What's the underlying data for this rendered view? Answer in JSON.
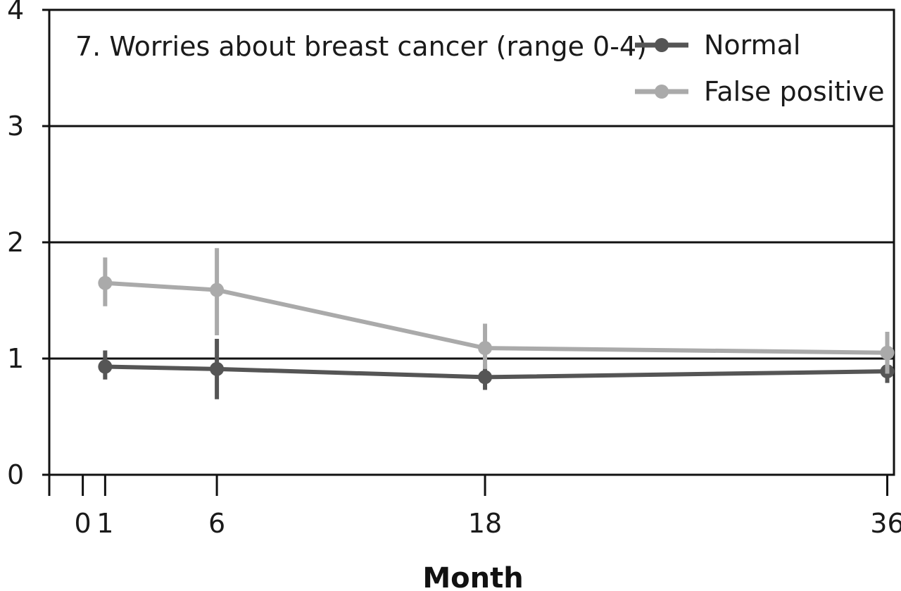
{
  "chart_data": {
    "type": "line",
    "title": "7. Worries about breast cancer (range 0-4)",
    "xlabel": "Month",
    "ylabel": "",
    "x_ticks": [
      0,
      1,
      6,
      18,
      36
    ],
    "y_ticks": [
      0,
      1,
      2,
      3,
      4
    ],
    "xlim": [
      -1.5,
      36.3
    ],
    "ylim": [
      0,
      4
    ],
    "grid": "horizontal",
    "legend": "top-right",
    "series": [
      {
        "name": "Normal",
        "color": "#555555",
        "points": [
          {
            "x": 1,
            "y": 0.93,
            "lo": 0.82,
            "hi": 1.07
          },
          {
            "x": 6,
            "y": 0.91,
            "lo": 0.65,
            "hi": 1.17
          },
          {
            "x": 18,
            "y": 0.84,
            "lo": 0.73,
            "hi": 0.95
          },
          {
            "x": 36,
            "y": 0.89,
            "lo": 0.79,
            "hi": 0.99
          }
        ]
      },
      {
        "name": "False positive",
        "color": "#aaaaaa",
        "points": [
          {
            "x": 1,
            "y": 1.65,
            "lo": 1.45,
            "hi": 1.87
          },
          {
            "x": 6,
            "y": 1.59,
            "lo": 1.2,
            "hi": 1.95
          },
          {
            "x": 18,
            "y": 1.09,
            "lo": 0.91,
            "hi": 1.3
          },
          {
            "x": 36,
            "y": 1.05,
            "lo": 0.87,
            "hi": 1.23
          }
        ]
      }
    ]
  }
}
